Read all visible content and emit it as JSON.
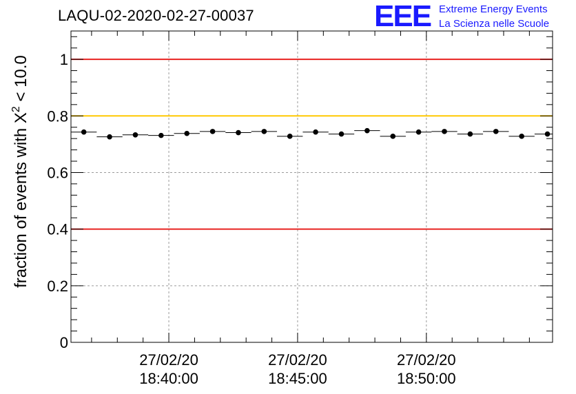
{
  "title": "LAQU-02-2020-02-27-00037",
  "logo": {
    "mark": "EEE",
    "line1": "Extreme Energy Events",
    "line2": "La Scienza nelle Scuole"
  },
  "chart_data": {
    "type": "scatter",
    "title": "LAQU-02-2020-02-27-00037",
    "ylabel_prefix": "fraction of events with ",
    "ylabel_symbol": "X",
    "ylabel_sup": "2",
    "ylabel_suffix": " < 10.0",
    "xlabel": "",
    "ylim": [
      0,
      1.1
    ],
    "xlim_minutes": [
      -3.8,
      14.9
    ],
    "yticks": [
      "0",
      "0.2",
      "0.4",
      "0.6",
      "0.8",
      "1"
    ],
    "ytick_values": [
      0,
      0.2,
      0.4,
      0.6,
      0.8,
      1.0
    ],
    "xticks": [
      {
        "value": 0,
        "date": "27/02/20",
        "time": "18:40:00"
      },
      {
        "value": 5,
        "date": "27/02/20",
        "time": "18:45:00"
      },
      {
        "value": 10,
        "date": "27/02/20",
        "time": "18:50:00"
      }
    ],
    "grid": true,
    "reference_lines": [
      {
        "y": 1.0,
        "color": "#e8211f"
      },
      {
        "y": 0.8,
        "color": "#ffc800"
      },
      {
        "y": 0.4,
        "color": "#e8211f"
      }
    ],
    "bin_width_minutes": 1.0,
    "points": [
      {
        "x": -3.3,
        "y": 0.743
      },
      {
        "x": -2.3,
        "y": 0.726
      },
      {
        "x": -1.3,
        "y": 0.733
      },
      {
        "x": -0.3,
        "y": 0.731
      },
      {
        "x": 0.7,
        "y": 0.738
      },
      {
        "x": 1.7,
        "y": 0.745
      },
      {
        "x": 2.7,
        "y": 0.741
      },
      {
        "x": 3.7,
        "y": 0.745
      },
      {
        "x": 4.7,
        "y": 0.728
      },
      {
        "x": 5.7,
        "y": 0.743
      },
      {
        "x": 6.7,
        "y": 0.736
      },
      {
        "x": 7.7,
        "y": 0.748
      },
      {
        "x": 8.7,
        "y": 0.728
      },
      {
        "x": 9.7,
        "y": 0.743
      },
      {
        "x": 10.7,
        "y": 0.745
      },
      {
        "x": 11.7,
        "y": 0.736
      },
      {
        "x": 12.7,
        "y": 0.745
      },
      {
        "x": 13.7,
        "y": 0.728
      },
      {
        "x": 14.7,
        "y": 0.736
      }
    ]
  }
}
